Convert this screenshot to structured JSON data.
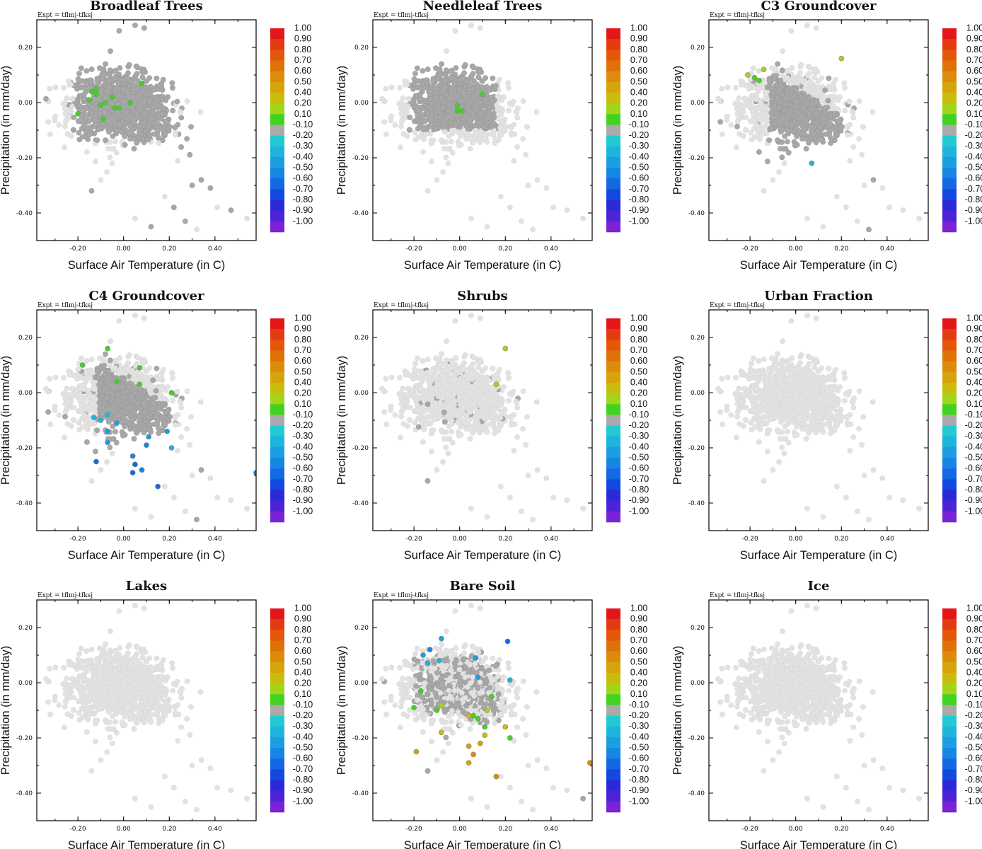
{
  "figure": {
    "experiment_label": "Expt = tflmj-tfksj",
    "xlabel": "Surface Air Temperature (in C)",
    "ylabel": "Precipitation (in mm/day)",
    "x_ticks": [
      "-0.20",
      "0.00",
      "0.20",
      "0.40"
    ],
    "y_ticks": [
      "0.20",
      "0.00",
      "-0.20",
      "-0.40"
    ]
  },
  "colorbar": {
    "labels": [
      "1.00",
      "0.90",
      "0.80",
      "0.70",
      "0.60",
      "0.50",
      "0.40",
      "0.20",
      "0.10",
      "-0.10",
      "-0.20",
      "-0.30",
      "-0.40",
      "-0.50",
      "-0.60",
      "-0.70",
      "-0.80",
      "-0.90",
      "-1.00"
    ],
    "colors": [
      "#e3171a",
      "#e43a12",
      "#e4560a",
      "#e07008",
      "#dc8c08",
      "#d6a40a",
      "#c9bc0c",
      "#a4d41a",
      "#41d31f",
      "#aaaaaa",
      "#21cad3",
      "#1eb4dc",
      "#1a9fe0",
      "#1786e2",
      "#1468e3",
      "#1249df",
      "#2a2ad8",
      "#4e22d6",
      "#7a22d6"
    ]
  },
  "chart_data": [
    {
      "type": "scatter",
      "title": "Broadleaf Trees",
      "xlabel": "Surface Air Temperature (in C)",
      "ylabel": "Precipitation (in mm/day)",
      "xlim": [
        -0.38,
        0.58
      ],
      "ylim": [
        -0.5,
        0.3
      ],
      "background_style": "mixed",
      "colorbar_range": [
        -1.0,
        1.0
      ],
      "points": [
        [
          -0.14,
          0.04,
          0.15
        ],
        [
          -0.12,
          0.05,
          0.15
        ],
        [
          -0.12,
          0.03,
          0.15
        ],
        [
          -0.15,
          0.01,
          0.15
        ],
        [
          -0.1,
          -0.01,
          0.15
        ],
        [
          -0.08,
          0.0,
          0.15
        ],
        [
          -0.05,
          0.02,
          0.15
        ],
        [
          -0.04,
          -0.02,
          0.15
        ],
        [
          -0.02,
          -0.02,
          0.15
        ],
        [
          0.03,
          0.0,
          0.15
        ],
        [
          0.08,
          0.07,
          0.15
        ],
        [
          -0.09,
          -0.06,
          0.15
        ],
        [
          -0.2,
          -0.04,
          0.15
        ]
      ]
    },
    {
      "type": "scatter",
      "title": "Needleleaf Trees",
      "xlabel": "Surface Air Temperature (in C)",
      "ylabel": "Precipitation (in mm/day)",
      "xlim": [
        -0.38,
        0.58
      ],
      "ylim": [
        -0.5,
        0.3
      ],
      "background_style": "cluster",
      "colorbar_range": [
        -1.0,
        1.0
      ],
      "points": [
        [
          -0.01,
          -0.01,
          0.15
        ],
        [
          -0.01,
          -0.03,
          0.15
        ],
        [
          0.01,
          -0.03,
          0.15
        ],
        [
          0.1,
          0.03,
          0.15
        ]
      ]
    },
    {
      "type": "scatter",
      "title": "C3 Groundcover",
      "xlabel": "Surface Air Temperature (in C)",
      "ylabel": "Precipitation (in mm/day)",
      "xlim": [
        -0.38,
        0.58
      ],
      "ylim": [
        -0.5,
        0.3
      ],
      "background_style": "diagonal",
      "colorbar_range": [
        -1.0,
        1.0
      ],
      "points": [
        [
          -0.21,
          0.1,
          0.25
        ],
        [
          -0.18,
          0.09,
          0.15
        ],
        [
          -0.16,
          0.08,
          0.15
        ],
        [
          -0.14,
          0.12,
          0.25
        ],
        [
          0.2,
          0.16,
          0.25
        ],
        [
          0.07,
          -0.22,
          -0.2
        ]
      ]
    },
    {
      "type": "scatter",
      "title": "C4 Groundcover",
      "xlabel": "Surface Air Temperature (in C)",
      "ylabel": "Precipitation (in mm/day)",
      "xlim": [
        -0.38,
        0.58
      ],
      "ylim": [
        -0.5,
        0.3
      ],
      "background_style": "diagonal",
      "colorbar_range": [
        -1.0,
        1.0
      ],
      "points": [
        [
          -0.07,
          0.16,
          0.15
        ],
        [
          -0.18,
          0.1,
          0.15
        ],
        [
          -0.03,
          0.04,
          0.15
        ],
        [
          0.07,
          0.09,
          0.15
        ],
        [
          0.07,
          0.03,
          0.15
        ],
        [
          0.21,
          0.0,
          0.15
        ],
        [
          -0.13,
          -0.09,
          -0.2
        ],
        [
          -0.1,
          -0.1,
          -0.2
        ],
        [
          -0.07,
          -0.08,
          -0.25
        ],
        [
          -0.07,
          -0.14,
          -0.3
        ],
        [
          -0.07,
          -0.18,
          -0.35
        ],
        [
          -0.03,
          -0.11,
          -0.3
        ],
        [
          0.11,
          -0.16,
          -0.35
        ],
        [
          0.1,
          -0.19,
          -0.4
        ],
        [
          0.19,
          -0.14,
          -0.3
        ],
        [
          0.21,
          -0.2,
          -0.25
        ],
        [
          0.04,
          -0.23,
          -0.45
        ],
        [
          0.05,
          -0.26,
          -0.6
        ],
        [
          0.04,
          -0.29,
          -0.5
        ],
        [
          0.15,
          -0.34,
          -0.55
        ],
        [
          -0.12,
          -0.25,
          -0.5
        ],
        [
          0.58,
          -0.29,
          -0.45
        ],
        [
          0.08,
          -0.28,
          -0.4
        ]
      ]
    },
    {
      "type": "scatter",
      "title": "Shrubs",
      "xlabel": "Surface Air Temperature (in C)",
      "ylabel": "Precipitation (in mm/day)",
      "xlim": [
        -0.38,
        0.58
      ],
      "ylim": [
        -0.5,
        0.3
      ],
      "background_style": "sparse",
      "colorbar_range": [
        -1.0,
        1.0
      ],
      "points": [
        [
          0.2,
          0.16,
          0.25
        ],
        [
          0.16,
          0.03,
          0.25
        ]
      ]
    },
    {
      "type": "scatter",
      "title": "Urban Fraction",
      "xlabel": "Surface Air Temperature (in C)",
      "ylabel": "Precipitation (in mm/day)",
      "xlim": [
        -0.38,
        0.58
      ],
      "ylim": [
        -0.5,
        0.3
      ],
      "background_style": "none",
      "colorbar_range": [
        -1.0,
        1.0
      ],
      "points": []
    },
    {
      "type": "scatter",
      "title": "Lakes",
      "xlabel": "Surface Air Temperature (in C)",
      "ylabel": "Precipitation (in mm/day)",
      "xlim": [
        -0.38,
        0.58
      ],
      "ylim": [
        -0.5,
        0.3
      ],
      "background_style": "none",
      "colorbar_range": [
        -1.0,
        1.0
      ],
      "points": []
    },
    {
      "type": "scatter",
      "title": "Bare Soil",
      "xlabel": "Surface Air Temperature (in C)",
      "ylabel": "Precipitation (in mm/day)",
      "xlim": [
        -0.38,
        0.58
      ],
      "ylim": [
        -0.5,
        0.3
      ],
      "background_style": "bare",
      "colorbar_range": [
        -1.0,
        1.0
      ],
      "points": [
        [
          -0.13,
          0.12,
          -0.45
        ],
        [
          -0.08,
          0.16,
          -0.35
        ],
        [
          -0.16,
          0.1,
          -0.3
        ],
        [
          -0.09,
          0.08,
          -0.25
        ],
        [
          -0.14,
          0.07,
          -0.2
        ],
        [
          0.07,
          0.09,
          -0.3
        ],
        [
          0.08,
          0.02,
          -0.3
        ],
        [
          0.21,
          0.15,
          -0.5
        ],
        [
          0.22,
          0.01,
          -0.25
        ],
        [
          -0.17,
          -0.03,
          0.15
        ],
        [
          -0.2,
          -0.09,
          0.15
        ],
        [
          -0.1,
          -0.1,
          0.15
        ],
        [
          -0.08,
          -0.08,
          0.25
        ],
        [
          0.14,
          -0.05,
          0.15
        ],
        [
          0.12,
          -0.1,
          0.25
        ],
        [
          0.11,
          -0.16,
          0.15
        ],
        [
          0.06,
          -0.12,
          0.15
        ],
        [
          0.04,
          -0.12,
          0.3
        ],
        [
          0.08,
          -0.13,
          0.15
        ],
        [
          0.22,
          -0.2,
          0.15
        ],
        [
          0.2,
          -0.16,
          0.3
        ],
        [
          0.11,
          -0.19,
          0.3
        ],
        [
          -0.08,
          -0.18,
          0.35
        ],
        [
          -0.19,
          -0.25,
          0.4
        ],
        [
          0.04,
          -0.23,
          0.4
        ],
        [
          0.09,
          -0.22,
          0.4
        ],
        [
          0.06,
          -0.26,
          0.55
        ],
        [
          0.04,
          -0.29,
          0.5
        ],
        [
          0.16,
          -0.34,
          0.6
        ],
        [
          0.57,
          -0.29,
          0.6
        ]
      ]
    },
    {
      "type": "scatter",
      "title": "Ice",
      "xlabel": "Surface Air Temperature (in C)",
      "ylabel": "Precipitation (in mm/day)",
      "xlim": [
        -0.38,
        0.58
      ],
      "ylim": [
        -0.5,
        0.3
      ],
      "background_style": "none",
      "colorbar_range": [
        -1.0,
        1.0
      ],
      "points": []
    }
  ]
}
